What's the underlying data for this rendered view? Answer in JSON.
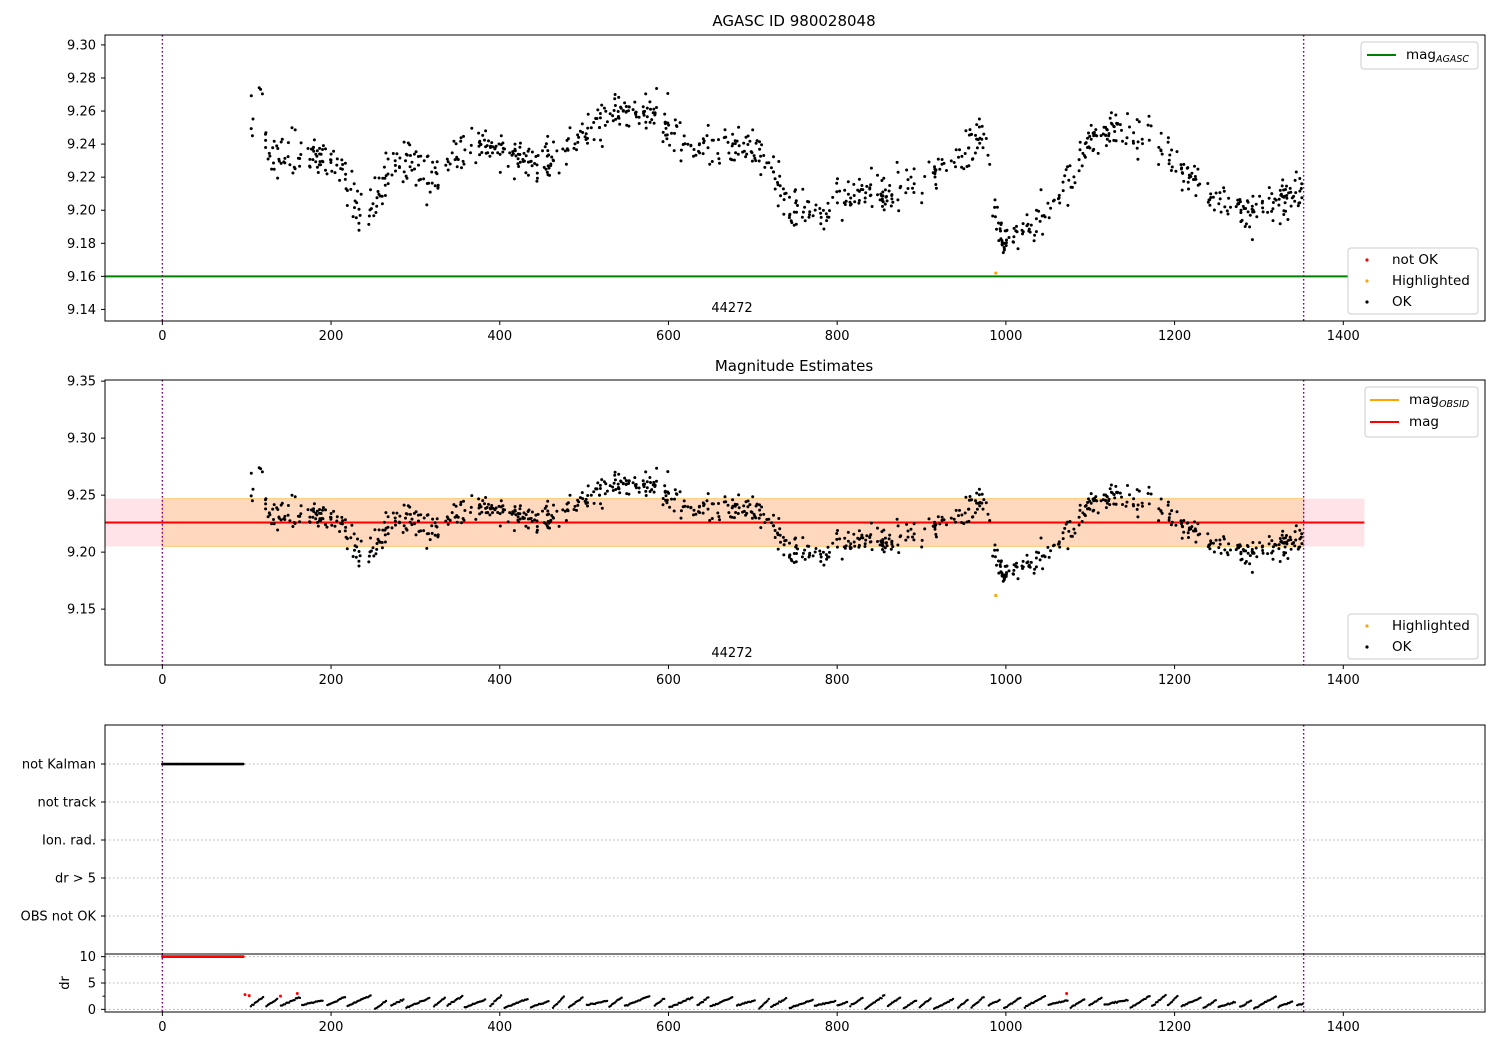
{
  "chart_data": [
    {
      "type": "scatter",
      "title": "AGASC ID 980028048",
      "xlabel": "",
      "ylabel": "",
      "xlim": [
        -68,
        1568
      ],
      "ylim": [
        9.133,
        9.306
      ],
      "x_ticks": [
        "0",
        "200",
        "400",
        "600",
        "800",
        "1000",
        "1200",
        "1400"
      ],
      "y_ticks": [
        "9.14",
        "9.16",
        "9.18",
        "9.20",
        "9.22",
        "9.24",
        "9.26",
        "9.28",
        "9.30"
      ],
      "obsid_label": "44272",
      "obs_boundaries": [
        0,
        1353
      ],
      "reference_line": {
        "name": "mag",
        "subscript": "AGASC",
        "value": 9.16,
        "x_range": [
          -68,
          1425
        ],
        "color": "#008000"
      },
      "legend_lines": [
        {
          "label": "mag",
          "sub": "AGASC",
          "color": "#008000"
        }
      ],
      "legend_points": [
        {
          "label": "not OK",
          "color": "#ff0000"
        },
        {
          "label": "Highlighted",
          "color": "#ffa500"
        },
        {
          "label": "OK",
          "color": "#000000"
        }
      ],
      "highlighted_points": [
        {
          "x": 988,
          "y": 9.162
        }
      ],
      "segments": [
        [
          100,
          9.258,
          0.009
        ],
        [
          118,
          9.263,
          0.01
        ],
        [
          125,
          9.228,
          0.005
        ],
        [
          150,
          9.233,
          0.007
        ],
        [
          190,
          9.232,
          0.006
        ],
        [
          215,
          9.225,
          0.008
        ],
        [
          232,
          9.2,
          0.008
        ],
        [
          258,
          9.205,
          0.008
        ],
        [
          270,
          9.224,
          0.006
        ],
        [
          300,
          9.232,
          0.006
        ],
        [
          322,
          9.218,
          0.007
        ],
        [
          345,
          9.232,
          0.006
        ],
        [
          380,
          9.24,
          0.006
        ],
        [
          410,
          9.238,
          0.006
        ],
        [
          440,
          9.226,
          0.006
        ],
        [
          470,
          9.232,
          0.007
        ],
        [
          500,
          9.247,
          0.006
        ],
        [
          530,
          9.258,
          0.006
        ],
        [
          560,
          9.262,
          0.005
        ],
        [
          590,
          9.255,
          0.006
        ],
        [
          620,
          9.244,
          0.006
        ],
        [
          650,
          9.238,
          0.006
        ],
        [
          690,
          9.24,
          0.006
        ],
        [
          720,
          9.23,
          0.006
        ],
        [
          745,
          9.2,
          0.006
        ],
        [
          790,
          9.2,
          0.006
        ],
        [
          820,
          9.212,
          0.006
        ],
        [
          860,
          9.21,
          0.006
        ],
        [
          900,
          9.22,
          0.006
        ],
        [
          940,
          9.23,
          0.006
        ],
        [
          960,
          9.24,
          0.006
        ],
        [
          976,
          9.248,
          0.004
        ],
        [
          983,
          9.21,
          0.006
        ],
        [
          995,
          9.18,
          0.006
        ],
        [
          1030,
          9.19,
          0.006
        ],
        [
          1060,
          9.205,
          0.006
        ],
        [
          1090,
          9.235,
          0.007
        ],
        [
          1130,
          9.25,
          0.006
        ],
        [
          1160,
          9.245,
          0.007
        ],
        [
          1200,
          9.23,
          0.006
        ],
        [
          1230,
          9.212,
          0.006
        ],
        [
          1262,
          9.205,
          0.005
        ],
        [
          1290,
          9.195,
          0.006
        ],
        [
          1320,
          9.205,
          0.006
        ],
        [
          1354,
          9.212,
          0.006
        ]
      ],
      "point_count": 1000
    },
    {
      "type": "scatter",
      "title": "Magnitude Estimates",
      "xlabel": "",
      "ylabel": "",
      "xlim": [
        -68,
        1568
      ],
      "ylim": [
        9.101,
        9.351
      ],
      "x_ticks": [
        "0",
        "200",
        "400",
        "600",
        "800",
        "1000",
        "1200",
        "1400"
      ],
      "y_ticks": [
        "9.15",
        "9.20",
        "9.25",
        "9.30",
        "9.35"
      ],
      "obsid_label": "44272",
      "obs_boundaries": [
        0,
        1353
      ],
      "mag_line": {
        "name": "mag",
        "value": 9.226,
        "x_range": [
          -68,
          1425
        ],
        "color": "#ff0000"
      },
      "mag_band": {
        "low": 9.205,
        "high": 9.247,
        "x_range": [
          -68,
          1425
        ],
        "color": "#ffc0cb"
      },
      "obsid_band": {
        "name": "mag",
        "subscript": "OBSID",
        "low": 9.205,
        "high": 9.247,
        "x_range": [
          0,
          1353
        ],
        "color": "#ffa500"
      },
      "legend_lines": [
        {
          "label": "mag",
          "sub": "OBSID",
          "color": "#ffa500"
        },
        {
          "label": "mag",
          "sub": "",
          "color": "#ff0000"
        }
      ],
      "legend_points": [
        {
          "label": "Highlighted",
          "color": "#ffa500"
        },
        {
          "label": "OK",
          "color": "#000000"
        }
      ],
      "highlighted_points": [
        {
          "x": 988,
          "y": 9.162
        }
      ]
    },
    {
      "type": "scatter",
      "title": "",
      "xlim": [
        -68,
        1568
      ],
      "x_ticks": [
        "0",
        "200",
        "400",
        "600",
        "800",
        "1000",
        "1200",
        "1400"
      ],
      "flag_categories": [
        "not Kalman",
        "not track",
        "Ion. rad.",
        "dr > 5",
        "OBS not OK"
      ],
      "flags": [
        {
          "category": "not Kalman",
          "x_range": [
            0,
            96
          ],
          "color": "#000000"
        }
      ],
      "obs_boundaries": [
        0,
        1353
      ]
    },
    {
      "type": "scatter",
      "title": "",
      "xlabel": "",
      "ylabel": "dr",
      "xlim": [
        -68,
        1568
      ],
      "ylim": [
        -0.5,
        10.5
      ],
      "x_ticks": [
        "0",
        "200",
        "400",
        "600",
        "800",
        "1000",
        "1200",
        "1400"
      ],
      "y_ticks": [
        "0",
        "5",
        "10"
      ],
      "clipped": {
        "x_range": [
          0,
          96
        ],
        "value": 10,
        "color": "#ff0000"
      },
      "red_points": [
        {
          "x": 98,
          "y": 2.8
        },
        {
          "x": 103,
          "y": 2.6
        },
        {
          "x": 140,
          "y": 2.5
        },
        {
          "x": 160,
          "y": 3.0
        },
        {
          "x": 1072,
          "y": 3.0
        }
      ],
      "obs_boundaries": [
        0,
        1353
      ],
      "start_x": 105,
      "end_x": 1353
    }
  ]
}
